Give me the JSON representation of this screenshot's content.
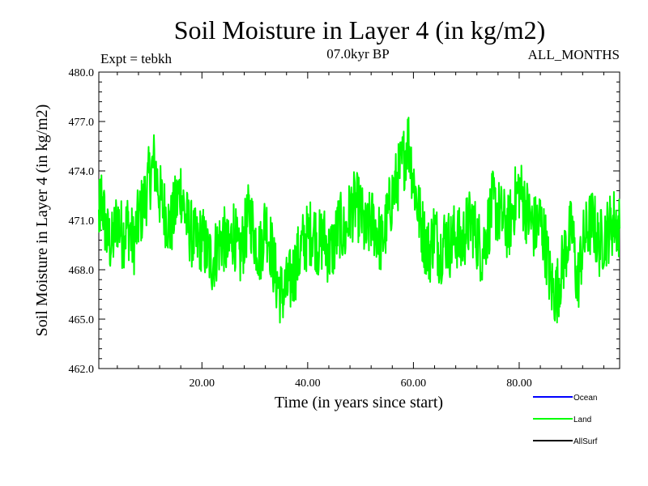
{
  "chart_data": {
    "type": "line",
    "title": "Soil Moisture in Layer 4 (in kg/m2)",
    "subtitle": "07.0kyr BP",
    "experiment": "Expt = tebkh",
    "period": "ALL_MONTHS",
    "xlabel": "Time (in years since start)",
    "ylabel": "Soil Moisture in Layer 4 (in kg/m2)",
    "xlim": [
      0.5,
      99
    ],
    "ylim": [
      462.0,
      480.0
    ],
    "x_ticks": [
      20,
      40,
      60,
      80
    ],
    "x_tick_labels": [
      "20.00",
      "40.00",
      "60.00",
      "80.00"
    ],
    "y_ticks": [
      462,
      465,
      468,
      471,
      474,
      477,
      480
    ],
    "y_tick_labels": [
      "462.0",
      "465.0",
      "468.0",
      "471.0",
      "474.0",
      "477.0",
      "480.0"
    ],
    "series": [
      {
        "name": "Land",
        "color": "#00ff00",
        "x": [
          0.5,
          1,
          2,
          3,
          4,
          5,
          6,
          7,
          8,
          9,
          10,
          11,
          12,
          13,
          14,
          15,
          16,
          17,
          18,
          19,
          20,
          21,
          22,
          23,
          24,
          25,
          26,
          27,
          28,
          29,
          30,
          31,
          32,
          33,
          34,
          35,
          36,
          37,
          38,
          39,
          40,
          41,
          42,
          43,
          44,
          45,
          46,
          47,
          48,
          49,
          50,
          51,
          52,
          53,
          54,
          55,
          56,
          57,
          58,
          59,
          60,
          61,
          62,
          63,
          64,
          65,
          66,
          67,
          68,
          69,
          70,
          71,
          72,
          73,
          74,
          75,
          76,
          77,
          78,
          79,
          80,
          81,
          82,
          83,
          84,
          85,
          86,
          87,
          88,
          89,
          90,
          91,
          92,
          93,
          94,
          95,
          96,
          97,
          98,
          99
        ],
        "values": [
          471.0,
          472.5,
          470.0,
          469.5,
          471.2,
          470.0,
          470.8,
          469.5,
          471.0,
          472.0,
          473.5,
          474.5,
          472.5,
          471.5,
          470.5,
          471.8,
          473.0,
          471.0,
          470.2,
          469.5,
          470.0,
          469.0,
          468.5,
          469.5,
          470.0,
          469.0,
          470.5,
          468.5,
          470.0,
          471.5,
          470.0,
          469.0,
          471.0,
          469.5,
          467.5,
          466.5,
          466.8,
          467.5,
          468.5,
          469.5,
          470.0,
          470.5,
          469.5,
          470.0,
          469.0,
          469.5,
          470.8,
          470.0,
          471.5,
          472.0,
          471.5,
          470.0,
          471.0,
          470.5,
          469.5,
          471.0,
          472.5,
          473.5,
          474.5,
          476.0,
          473.5,
          471.5,
          470.0,
          469.0,
          470.5,
          469.0,
          470.0,
          469.5,
          470.2,
          469.5,
          470.5,
          471.0,
          470.0,
          469.0,
          470.5,
          472.0,
          471.5,
          471.0,
          470.5,
          472.0,
          473.0,
          472.0,
          471.0,
          470.5,
          471.0,
          469.5,
          467.0,
          466.5,
          468.0,
          469.5,
          470.5,
          467.0,
          469.5,
          470.5,
          471.0,
          469.5,
          470.0,
          470.5,
          471.0,
          470.5
        ]
      }
    ],
    "legend": [
      {
        "label": "Ocean",
        "color": "#0000ff"
      },
      {
        "label": "Land",
        "color": "#00ff00"
      },
      {
        "label": "AllSurf",
        "color": "#000000"
      }
    ]
  }
}
